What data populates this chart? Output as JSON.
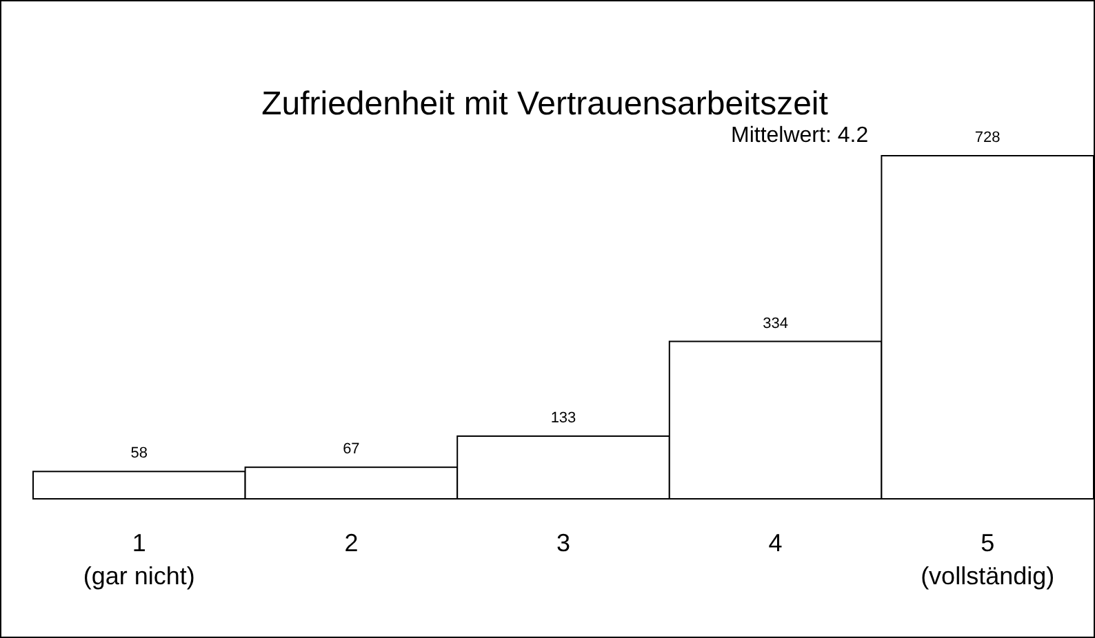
{
  "chart_data": {
    "type": "bar",
    "title": "Zufriedenheit mit Vertrauensarbeitszeit",
    "categories": [
      "1\n(gar nicht)",
      "2",
      "3",
      "4",
      "5\n(vollständig)"
    ],
    "values": [
      58,
      67,
      133,
      334,
      728
    ],
    "color": "#ffffff",
    "data_labels": true,
    "annotations": [
      "Mittelwert: 4.2"
    ]
  }
}
